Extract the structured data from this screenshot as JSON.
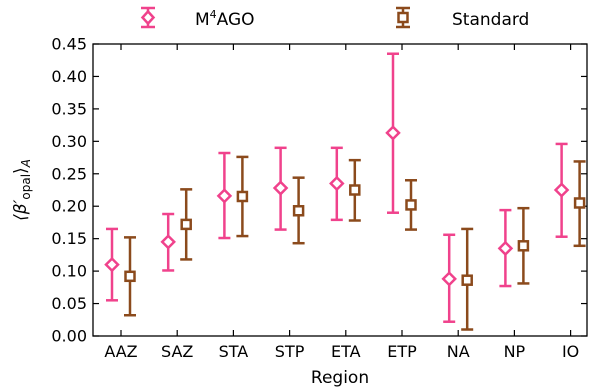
{
  "chart_data": {
    "type": "scatter",
    "title": "",
    "xlabel": "Region",
    "ylabel": "⟨β′opal⟩A",
    "ylabel_parts": {
      "main": "⟨β′",
      "sub": "opal",
      "close": "⟩",
      "subA": "A"
    },
    "categories": [
      "AAZ",
      "SAZ",
      "STA",
      "STP",
      "ETA",
      "ETP",
      "NA",
      "NP",
      "IO"
    ],
    "ylim": [
      0.0,
      0.45
    ],
    "yticks": [
      "0.00",
      "0.05",
      "0.10",
      "0.15",
      "0.20",
      "0.25",
      "0.30",
      "0.35",
      "0.40",
      "0.45"
    ],
    "grid": false,
    "legend_position": "top",
    "series": [
      {
        "name": "M4AGO",
        "name_parts": {
          "base": "M",
          "sup": "4",
          "rest": "AGO"
        },
        "marker": "diamond",
        "color": "#f0428c",
        "values": [
          0.11,
          0.145,
          0.216,
          0.228,
          0.235,
          0.313,
          0.088,
          0.135,
          0.225
        ],
        "lower": [
          0.055,
          0.101,
          0.151,
          0.164,
          0.179,
          0.19,
          0.022,
          0.077,
          0.153
        ],
        "upper": [
          0.165,
          0.188,
          0.282,
          0.29,
          0.29,
          0.435,
          0.156,
          0.194,
          0.296
        ]
      },
      {
        "name": "Standard",
        "marker": "square",
        "color": "#8b4a1c",
        "values": [
          0.092,
          0.172,
          0.215,
          0.193,
          0.225,
          0.202,
          0.086,
          0.139,
          0.205
        ],
        "lower": [
          0.032,
          0.118,
          0.154,
          0.143,
          0.178,
          0.164,
          0.01,
          0.081,
          0.139
        ],
        "upper": [
          0.152,
          0.226,
          0.276,
          0.244,
          0.271,
          0.24,
          0.165,
          0.197,
          0.269
        ]
      }
    ]
  }
}
